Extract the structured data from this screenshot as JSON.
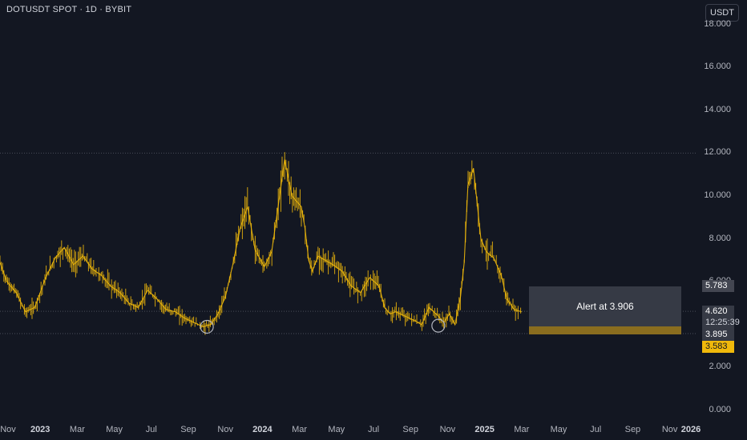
{
  "header": {
    "title": "DOTUSDT SPOT · 1D · BYBIT",
    "currency": "USDT"
  },
  "alert": {
    "label": "Alert at 3.906"
  },
  "price_tags": [
    {
      "label": "5.783",
      "value": 5.783,
      "bg": "#434651",
      "fg": "#ffffff"
    },
    {
      "label": "4.620",
      "value": 4.62,
      "bg": "#363a45",
      "fg": "#ffffff"
    },
    {
      "label": "12:25:39",
      "value": 4.62,
      "bg": "#363a45",
      "fg": "#d1d4dc"
    },
    {
      "label": "3.895",
      "value": 3.895,
      "bg": "#363a45",
      "fg": "#ffffff"
    },
    {
      "label": "3.583",
      "value": 3.583,
      "bg": "#f0b90b",
      "fg": "#131722"
    }
  ],
  "colors": {
    "background": "#131722",
    "series": "#f0b90b",
    "grid_dotted": "#4a4e59",
    "circle": "#b2b5be"
  },
  "chart_data": {
    "type": "line",
    "title": "DOTUSDT SPOT · 1D · BYBIT",
    "ylabel": "USDT",
    "ylim": [
      0,
      18
    ],
    "yticks": [
      "0.000",
      "2.000",
      "4.000",
      "6.000",
      "8.000",
      "10.000",
      "12.000",
      "14.000",
      "16.000",
      "18.000"
    ],
    "xticks": [
      {
        "label": "Nov",
        "t": 0.0,
        "year": false
      },
      {
        "label": "2023",
        "t": 2.0,
        "year": true
      },
      {
        "label": "Mar",
        "t": 4.0,
        "year": false
      },
      {
        "label": "May",
        "t": 6.0,
        "year": false
      },
      {
        "label": "Jul",
        "t": 8.0,
        "year": false
      },
      {
        "label": "Sep",
        "t": 10.0,
        "year": false
      },
      {
        "label": "Nov",
        "t": 12.0,
        "year": false
      },
      {
        "label": "2024",
        "t": 14.0,
        "year": true
      },
      {
        "label": "Mar",
        "t": 16.0,
        "year": false
      },
      {
        "label": "May",
        "t": 18.0,
        "year": false
      },
      {
        "label": "Jul",
        "t": 20.0,
        "year": false
      },
      {
        "label": "Sep",
        "t": 22.0,
        "year": false
      },
      {
        "label": "Nov",
        "t": 24.0,
        "year": false
      },
      {
        "label": "2025",
        "t": 26.0,
        "year": true
      },
      {
        "label": "Mar",
        "t": 28.0,
        "year": false
      },
      {
        "label": "May",
        "t": 30.0,
        "year": false
      },
      {
        "label": "Jul",
        "t": 32.0,
        "year": false
      },
      {
        "label": "Sep",
        "t": 34.0,
        "year": false
      },
      {
        "label": "Nov",
        "t": 36.0,
        "year": false
      },
      {
        "label": "2026",
        "t": 38.0,
        "year": true
      }
    ],
    "series": [
      {
        "x": [
          -0.3,
          0.2,
          0.7,
          1.2,
          1.7,
          2.3,
          2.8,
          3.3,
          3.8,
          4.3,
          4.8,
          5.3,
          5.8,
          6.3,
          6.8,
          7.3,
          7.8,
          8.3,
          8.8,
          9.3,
          9.8,
          10.3,
          10.8,
          11.2,
          11.6,
          12.0,
          12.4,
          12.8,
          13.2,
          13.6,
          14.1,
          14.5,
          14.8,
          15.2,
          15.6,
          16.1,
          16.3,
          16.5,
          16.7,
          17.0,
          17.4,
          17.8,
          18.3,
          18.8,
          19.3,
          19.8,
          20.3,
          20.6,
          20.9,
          21.2,
          21.7,
          22.2,
          22.6,
          23.0,
          23.5,
          23.8,
          24.1,
          24.4,
          24.7,
          24.9,
          25.1,
          25.4,
          25.8,
          26.1,
          26.5,
          26.9,
          27.2,
          27.6,
          28.0
        ],
        "y": [
          7.2,
          6.0,
          5.5,
          4.6,
          4.8,
          6.2,
          7.1,
          7.6,
          6.8,
          7.2,
          6.6,
          6.3,
          5.8,
          5.5,
          5.0,
          4.8,
          5.6,
          5.2,
          4.7,
          4.6,
          4.3,
          4.1,
          3.9,
          4.0,
          4.5,
          5.3,
          6.8,
          8.5,
          9.5,
          7.5,
          6.7,
          7.4,
          9.2,
          11.7,
          10.0,
          9.5,
          8.5,
          7.0,
          6.5,
          7.2,
          7.0,
          6.8,
          6.5,
          5.8,
          5.5,
          6.2,
          5.8,
          4.8,
          4.5,
          4.6,
          4.4,
          4.2,
          4.0,
          4.8,
          4.4,
          4.1,
          4.5,
          4.0,
          5.3,
          6.9,
          10.5,
          11.3,
          8.0,
          7.4,
          7.1,
          6.3,
          5.2,
          4.7,
          4.6
        ]
      }
    ]
  }
}
